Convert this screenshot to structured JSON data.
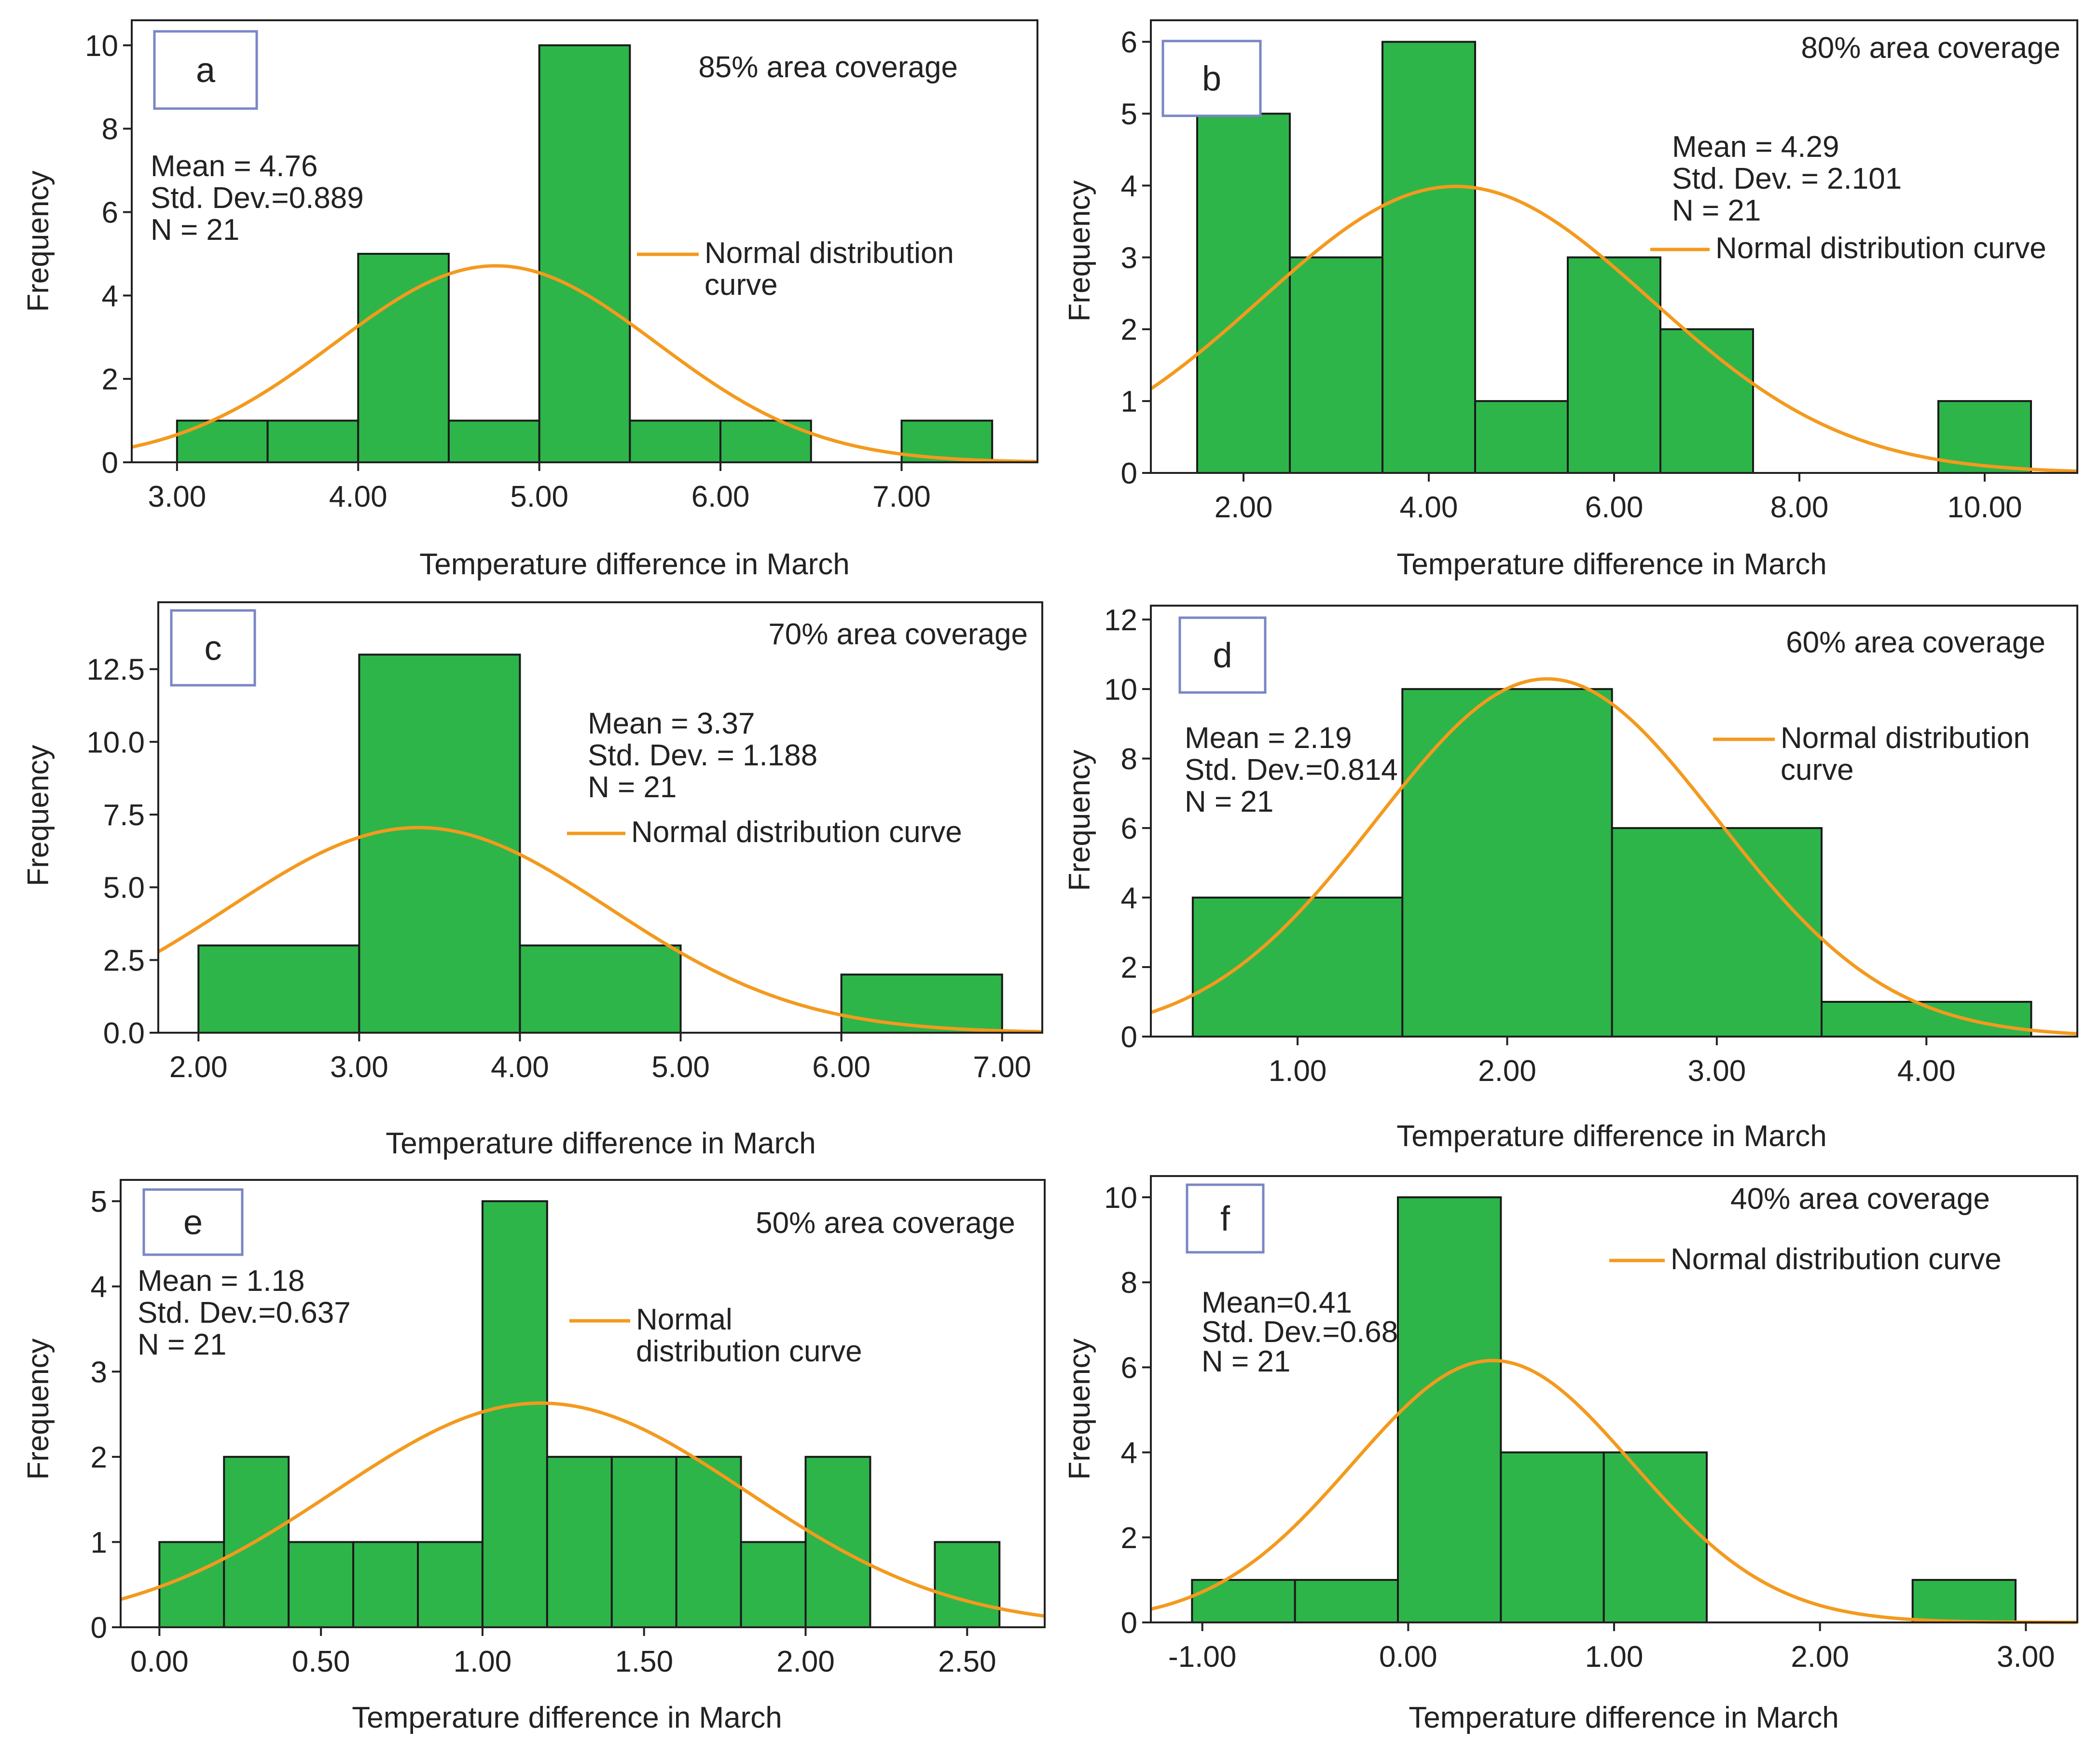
{
  "figure": {
    "colors": {
      "bar_fill": "#2db54a",
      "bar_stroke": "#1a1a1a",
      "curve": "#f39a1e",
      "letter_box": "#7a86c4",
      "frame": "#222222"
    }
  },
  "chart_data": [
    {
      "type": "bar",
      "panel_letter": "a",
      "coverage": "85% area coverage",
      "stats": [
        "Mean = 4.76",
        "Std. Dev.=0.889",
        "N = 21"
      ],
      "legend": [
        "Normal distribution",
        "curve"
      ],
      "xlabel": "Temperature difference in March",
      "ylabel": "Frequency",
      "xlim": [
        2.75,
        7.75
      ],
      "ylim": [
        0,
        10.6
      ],
      "xticks": [
        3,
        4,
        5,
        6,
        7
      ],
      "xtick_labels": [
        "3.00",
        "4.00",
        "5.00",
        "6.00",
        "7.00"
      ],
      "yticks": [
        0,
        2,
        4,
        6,
        8,
        10
      ],
      "ytick_labels": [
        "0",
        "2",
        "4",
        "6",
        "8",
        "10"
      ],
      "bin_width": 0.5,
      "bin_starts": [
        3.0,
        3.5,
        4.0,
        4.5,
        5.0,
        5.5,
        6.0,
        7.0
      ],
      "values": [
        1,
        1,
        5,
        1,
        10,
        1,
        1,
        1
      ],
      "normal_curve": {
        "mean": 4.76,
        "sd": 0.889,
        "n": 21
      }
    },
    {
      "type": "bar",
      "panel_letter": "b",
      "coverage": "80% area coverage",
      "stats": [
        "Mean = 4.29",
        "Std. Dev. = 2.101",
        "N = 21"
      ],
      "legend": [
        "Normal distribution curve"
      ],
      "xlabel": "Temperature difference in March",
      "ylabel": "Frequency",
      "xlim": [
        1.0,
        11.0
      ],
      "ylim": [
        0,
        6.3
      ],
      "xticks": [
        2,
        4,
        6,
        8,
        10
      ],
      "xtick_labels": [
        "2.00",
        "4.00",
        "6.00",
        "8.00",
        "10.00"
      ],
      "yticks": [
        0,
        1,
        2,
        3,
        4,
        5,
        6
      ],
      "ytick_labels": [
        "0",
        "1",
        "2",
        "3",
        "4",
        "5",
        "6"
      ],
      "bin_width": 1.0,
      "bin_starts": [
        1.5,
        2.5,
        3.5,
        4.5,
        5.5,
        6.5,
        9.5
      ],
      "values": [
        5,
        3,
        6,
        1,
        3,
        2,
        1
      ],
      "normal_curve": {
        "mean": 4.29,
        "sd": 2.101,
        "n": 21
      }
    },
    {
      "type": "bar",
      "panel_letter": "c",
      "coverage": "70% area coverage",
      "stats": [
        "Mean = 3.37",
        "Std. Dev. = 1.188",
        "N = 21"
      ],
      "legend": [
        "Normal distribution curve"
      ],
      "xlabel": "Temperature difference in March",
      "ylabel": "Frequency",
      "xlim": [
        1.75,
        7.25
      ],
      "ylim": [
        0,
        14.8
      ],
      "xticks": [
        2,
        3,
        4,
        5,
        6,
        7
      ],
      "xtick_labels": [
        "2.00",
        "3.00",
        "4.00",
        "5.00",
        "6.00",
        "7.00"
      ],
      "yticks": [
        0,
        2.5,
        5,
        7.5,
        10,
        12.5
      ],
      "ytick_labels": [
        "0.0",
        "2.5",
        "5.0",
        "7.5",
        "10.0",
        "12.5"
      ],
      "bin_width": 1.0,
      "bin_starts": [
        2,
        3,
        4,
        6
      ],
      "values": [
        3,
        13,
        3,
        2
      ],
      "normal_curve": {
        "mean": 3.37,
        "sd": 1.188,
        "n": 21
      }
    },
    {
      "type": "bar",
      "panel_letter": "d",
      "coverage": "60% area coverage",
      "stats": [
        "Mean = 2.19",
        "Std. Dev.=0.814",
        "N = 21"
      ],
      "legend": [
        "Normal distribution",
        "curve"
      ],
      "xlabel": "Temperature difference in March",
      "ylabel": "Frequency",
      "xlim": [
        0.3,
        4.72
      ],
      "ylim": [
        0,
        12.4
      ],
      "xticks": [
        1,
        2,
        3,
        4
      ],
      "xtick_labels": [
        "1.00",
        "2.00",
        "3.00",
        "4.00"
      ],
      "yticks": [
        0,
        2,
        4,
        6,
        8,
        10,
        12
      ],
      "ytick_labels": [
        "0",
        "2",
        "4",
        "6",
        "8",
        "10",
        "12"
      ],
      "bin_width": 1.0,
      "bin_starts": [
        0.5,
        1.5,
        2.5,
        3.5
      ],
      "values": [
        4,
        10,
        6,
        1
      ],
      "normal_curve": {
        "mean": 2.19,
        "sd": 0.814,
        "n": 21
      }
    },
    {
      "type": "bar",
      "panel_letter": "e",
      "coverage": "50% area coverage",
      "stats": [
        "Mean = 1.18",
        "Std. Dev.=0.637",
        "N = 21"
      ],
      "legend": [
        "Normal",
        "distribution curve"
      ],
      "xlabel": "Temperature difference in March",
      "ylabel": "Frequency",
      "xlim": [
        -0.12,
        2.74
      ],
      "ylim": [
        0,
        5.25
      ],
      "xticks": [
        0,
        0.5,
        1,
        1.5,
        2,
        2.5
      ],
      "xtick_labels": [
        "0.00",
        "0.50",
        "1.00",
        "1.50",
        "2.00",
        "2.50"
      ],
      "yticks": [
        0,
        1,
        2,
        3,
        4,
        5
      ],
      "ytick_labels": [
        "0",
        "1",
        "2",
        "3",
        "4",
        "5"
      ],
      "bin_width": 0.2,
      "bin_starts": [
        0.0,
        0.2,
        0.4,
        0.6,
        0.8,
        1.0,
        1.2,
        1.4,
        1.6,
        1.8,
        2.0,
        2.4
      ],
      "values": [
        1,
        2,
        1,
        1,
        1,
        5,
        2,
        2,
        2,
        1,
        2,
        1
      ],
      "normal_curve": {
        "mean": 1.18,
        "sd": 0.637,
        "n": 21
      }
    },
    {
      "type": "bar",
      "panel_letter": "f",
      "coverage": "40% area coverage",
      "stats": [
        "Mean=0.41",
        "Std. Dev.=0.68",
        "N = 21"
      ],
      "legend": [
        "Normal distribution curve"
      ],
      "xlabel": "Temperature difference in March",
      "ylabel": "Frequency",
      "xlim": [
        -1.25,
        3.25
      ],
      "ylim": [
        0,
        10.5
      ],
      "xticks": [
        -1,
        0,
        1,
        2,
        3
      ],
      "xtick_labels": [
        "-1.00",
        "0.00",
        "1.00",
        "2.00",
        "3.00"
      ],
      "yticks": [
        0,
        2,
        4,
        6,
        8,
        10
      ],
      "ytick_labels": [
        "0",
        "2",
        "4",
        "6",
        "8",
        "10"
      ],
      "bin_width": 0.5,
      "bin_starts": [
        -1.05,
        -0.55,
        -0.05,
        0.45,
        0.95,
        2.45
      ],
      "values": [
        1,
        1,
        10,
        4,
        4,
        1
      ],
      "normal_curve": {
        "mean": 0.41,
        "sd": 0.68,
        "n": 21
      }
    }
  ]
}
